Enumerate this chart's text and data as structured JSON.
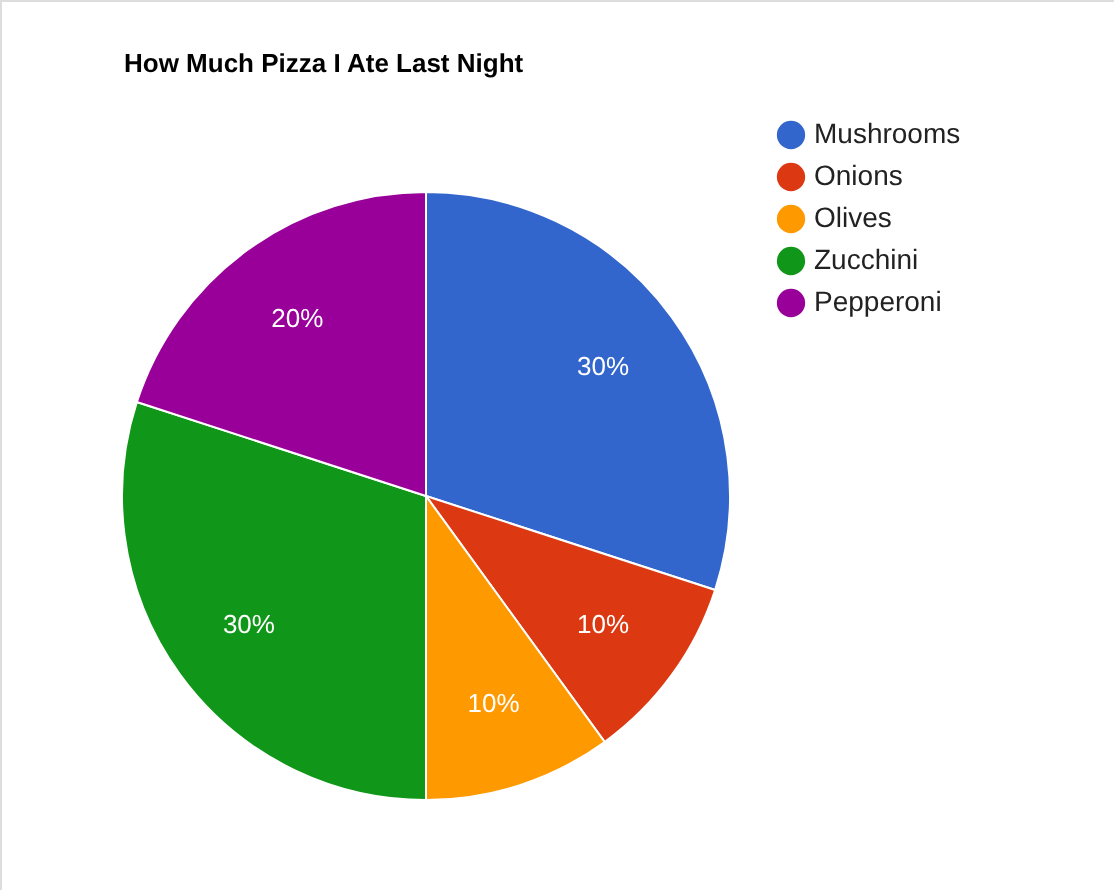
{
  "chart_data": {
    "type": "pie",
    "title": "How Much Pizza I Ate Last Night",
    "categories": [
      "Mushrooms",
      "Onions",
      "Olives",
      "Zucchini",
      "Pepperoni"
    ],
    "values": [
      30,
      10,
      10,
      30,
      20
    ],
    "colors": [
      "#3366cc",
      "#dc3912",
      "#ff9900",
      "#109618",
      "#990099"
    ],
    "value_labels": [
      "30%",
      "10%",
      "10%",
      "30%",
      "20%"
    ],
    "legend": "right"
  }
}
